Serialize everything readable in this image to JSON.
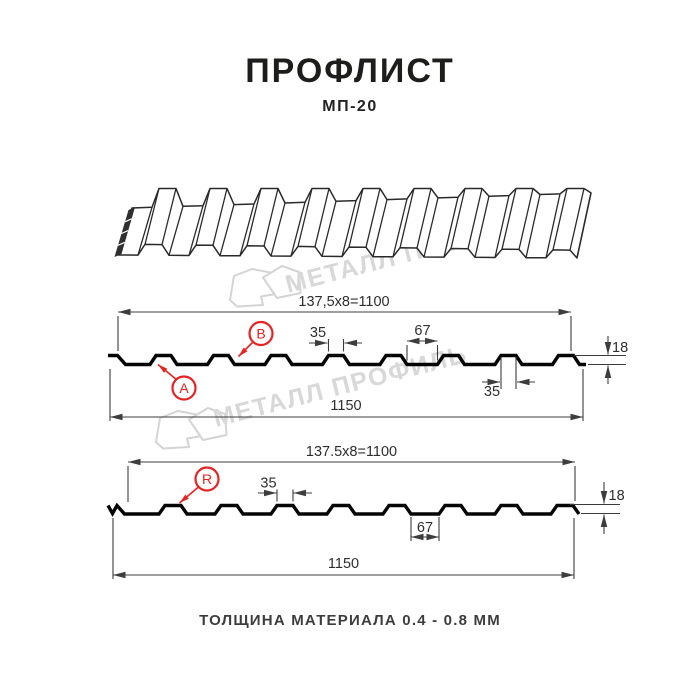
{
  "title": "ПРОФЛИСТ",
  "subtitle": "МП-20",
  "footer": "ТОЛЩИНА МАТЕРИАЛА 0.4 - 0.8 ММ",
  "watermark": {
    "text": "МЕТАЛЛ ПРОФИЛЬ"
  },
  "colors": {
    "accent_red": "#e62320",
    "drawing_line": "#3d3d3d",
    "profile_line": "#050505",
    "watermark_gray": "#d8d8d8",
    "text": "#1d1d1b"
  },
  "section_a": {
    "pitch_label": "137,5x8=1100",
    "rib_top_width": "35",
    "valley_width": "67",
    "height": "18",
    "rib_top_width_2": "35",
    "overall_width": "1150",
    "marker_a": "A",
    "marker_b": "B"
  },
  "section_r": {
    "pitch_label": "137.5x8=1100",
    "rib_top_width": "35",
    "valley_width": "67",
    "height": "18",
    "overall_width": "1150",
    "marker_r": "R"
  }
}
